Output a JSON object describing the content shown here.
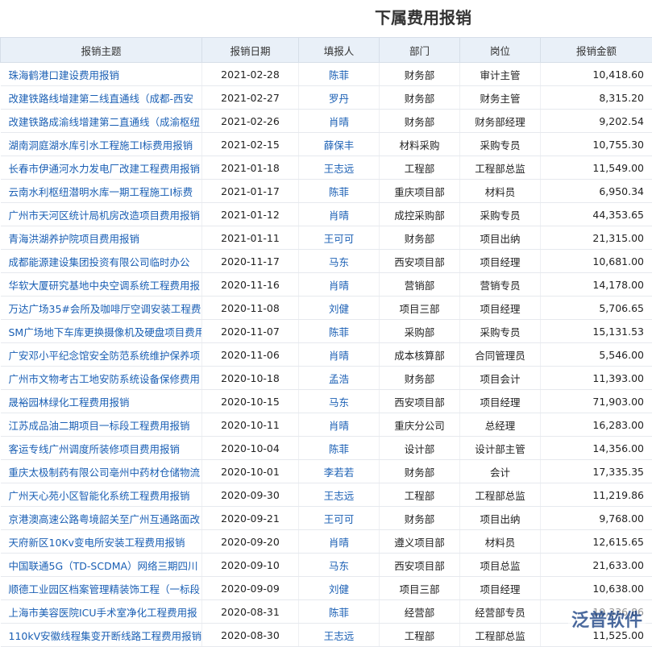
{
  "header": {
    "title": "下属费用报销"
  },
  "table": {
    "columns": [
      "报销主题",
      "报销日期",
      "填报人",
      "部门",
      "岗位",
      "报销金额"
    ],
    "rows": [
      [
        "珠海鹤港口建设费用报销",
        "2021-02-28",
        "陈菲",
        "财务部",
        "审计主管",
        "10,418.60"
      ],
      [
        "改建铁路线增建第二线直通线（成都-西安",
        "2021-02-27",
        "罗丹",
        "财务部",
        "财务主管",
        "8,315.20"
      ],
      [
        "改建铁路成渝线增建第二直通线（成渝枢纽",
        "2021-02-26",
        "肖晴",
        "财务部",
        "财务部经理",
        "9,202.54"
      ],
      [
        "湖南洞庭湖水库引水工程施工I标费用报销",
        "2021-02-15",
        "薛保丰",
        "材料采购",
        "采购专员",
        "10,755.30"
      ],
      [
        "长春市伊通河水力发电厂改建工程费用报销",
        "2021-01-18",
        "王志远",
        "工程部",
        "工程部总监",
        "11,549.00"
      ],
      [
        "云南水利枢纽潜明水库一期工程施工I标费",
        "2021-01-17",
        "陈菲",
        "重庆项目部",
        "材料员",
        "6,950.34"
      ],
      [
        "广州市天河区统计局机房改造项目费用报销",
        "2021-01-12",
        "肖晴",
        "成控采购部",
        "采购专员",
        "44,353.65"
      ],
      [
        "青海洪湖养护院项目费用报销",
        "2021-01-11",
        "王可可",
        "财务部",
        "项目出纳",
        "21,315.00"
      ],
      [
        "成都能源建设集团投资有限公司临时办公",
        "2020-11-17",
        "马东",
        "西安项目部",
        "项目经理",
        "10,681.00"
      ],
      [
        "华软大厦研究基地中央空调系统工程费用报",
        "2020-11-16",
        "肖晴",
        "营销部",
        "营销专员",
        "14,178.00"
      ],
      [
        "万达广场35#会所及咖啡厅空调安装工程费",
        "2020-11-08",
        "刘健",
        "项目三部",
        "项目经理",
        "5,706.65"
      ],
      [
        "SM广场地下车库更换摄像机及硬盘项目费用",
        "2020-11-07",
        "陈菲",
        "采购部",
        "采购专员",
        "15,131.53"
      ],
      [
        "广安邓小平纪念馆安全防范系统维护保养项",
        "2020-11-06",
        "肖晴",
        "成本核算部",
        "合同管理员",
        "5,546.00"
      ],
      [
        "广州市文物考古工地安防系统设备保修费用",
        "2020-10-18",
        "孟浩",
        "财务部",
        "项目会计",
        "11,393.00"
      ],
      [
        "晟裕园林绿化工程费用报销",
        "2020-10-15",
        "马东",
        "西安项目部",
        "项目经理",
        "71,903.00"
      ],
      [
        "江苏成品油二期项目一标段工程费用报销",
        "2020-10-11",
        "肖晴",
        "重庆分公司",
        "总经理",
        "16,283.00"
      ],
      [
        "客运专线广州调度所装修项目费用报销",
        "2020-10-04",
        "陈菲",
        "设计部",
        "设计部主管",
        "14,356.00"
      ],
      [
        "重庆太极制药有限公司亳州中药材仓储物流",
        "2020-10-01",
        "李若若",
        "财务部",
        "会计",
        "17,335.35"
      ],
      [
        "广州天心苑小区智能化系统工程费用报销",
        "2020-09-30",
        "王志远",
        "工程部",
        "工程部总监",
        "11,219.86"
      ],
      [
        "京港澳高速公路粤境韶关至广州互通路面改",
        "2020-09-21",
        "王可可",
        "财务部",
        "项目出纳",
        "9,768.00"
      ],
      [
        "天府新区10Kv变电所安装工程费用报销",
        "2020-09-20",
        "肖晴",
        "遵义项目部",
        "材料员",
        "12,615.65"
      ],
      [
        "中国联通5G（TD-SCDMA）网络三期四川",
        "2020-09-10",
        "马东",
        "西安项目部",
        "项目总监",
        "21,633.00"
      ],
      [
        "顺德工业园区档案管理精装饰工程（一标段",
        "2020-09-09",
        "刘健",
        "项目三部",
        "项目经理",
        "10,638.00"
      ],
      [
        "上海市美容医院ICU手术室净化工程费用报",
        "2020-08-31",
        "陈菲",
        "经营部",
        "经营部专员",
        "19,336.86"
      ],
      [
        "110kV安徽线程集变开断线路工程费用报销",
        "2020-08-30",
        "王志远",
        "工程部",
        "工程部总监",
        "11,525.00"
      ]
    ]
  },
  "watermark": "泛普软件"
}
